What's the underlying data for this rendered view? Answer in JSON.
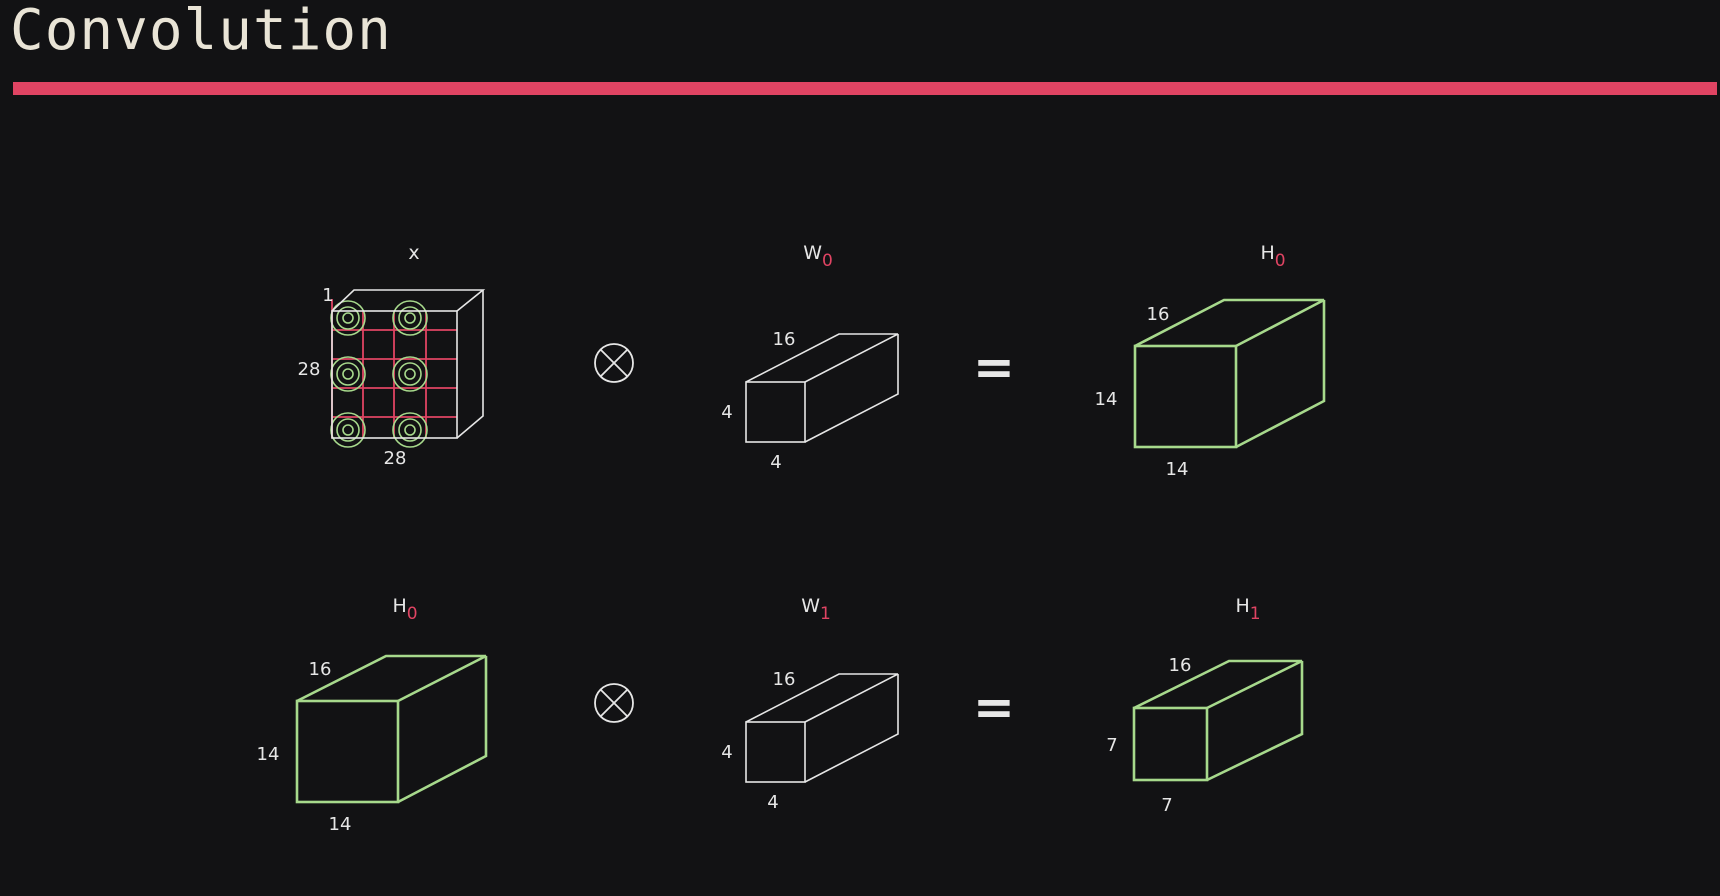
{
  "page": {
    "title": "Convolution",
    "accent_color": "#e04463",
    "tensor_color": "#a7d98c",
    "line_color": "#e6e6e6"
  },
  "diagram": {
    "row1": {
      "input": {
        "name": "x",
        "dim_depth": "1",
        "dim_height": "28",
        "dim_width": "28"
      },
      "operator": "⊗",
      "weight": {
        "name": "W",
        "sub": "0",
        "dim_depth": "16",
        "dim_height": "4",
        "dim_width": "4"
      },
      "equals": "=",
      "output": {
        "name": "H",
        "sub": "0",
        "dim_depth": "16",
        "dim_height": "14",
        "dim_width": "14"
      }
    },
    "row2": {
      "input": {
        "name": "H",
        "sub": "0",
        "dim_depth": "16",
        "dim_height": "14",
        "dim_width": "14"
      },
      "operator": "⊗",
      "weight": {
        "name": "W",
        "sub": "1",
        "dim_depth": "16",
        "dim_height": "4",
        "dim_width": "4"
      },
      "equals": "=",
      "output": {
        "name": "H",
        "sub": "1",
        "dim_depth": "16",
        "dim_height": "7",
        "dim_width": "7"
      }
    }
  }
}
